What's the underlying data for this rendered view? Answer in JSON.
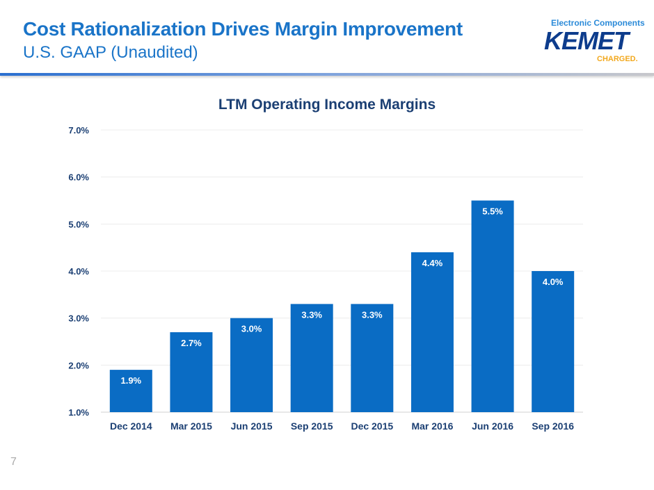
{
  "header": {
    "title": "Cost Rationalization Drives Margin Improvement",
    "subtitle": "U.S. GAAP (Unaudited)"
  },
  "logo": {
    "tagline": "Electronic Components",
    "name": "KEMET",
    "slogan": "CHARGED."
  },
  "page_number": "7",
  "colors": {
    "bar": "#0a6cc4",
    "title": "#1a74c8"
  },
  "chart_data": {
    "type": "bar",
    "title": "LTM Operating Income Margins",
    "categories": [
      "Dec 2014",
      "Mar 2015",
      "Jun 2015",
      "Sep 2015",
      "Dec 2015",
      "Mar 2016",
      "Jun 2016",
      "Sep 2016"
    ],
    "values": [
      1.9,
      2.7,
      3.0,
      3.3,
      3.3,
      4.4,
      5.5,
      4.0
    ],
    "labels": [
      "1.9%",
      "2.7%",
      "3.0%",
      "3.3%",
      "3.3%",
      "4.4%",
      "5.5%",
      "4.0%"
    ],
    "ylim": [
      1.0,
      7.0
    ],
    "yticks": [
      "1.0%",
      "2.0%",
      "3.0%",
      "4.0%",
      "5.0%",
      "6.0%",
      "7.0%"
    ],
    "xlabel": "",
    "ylabel": "",
    "grid": true
  }
}
